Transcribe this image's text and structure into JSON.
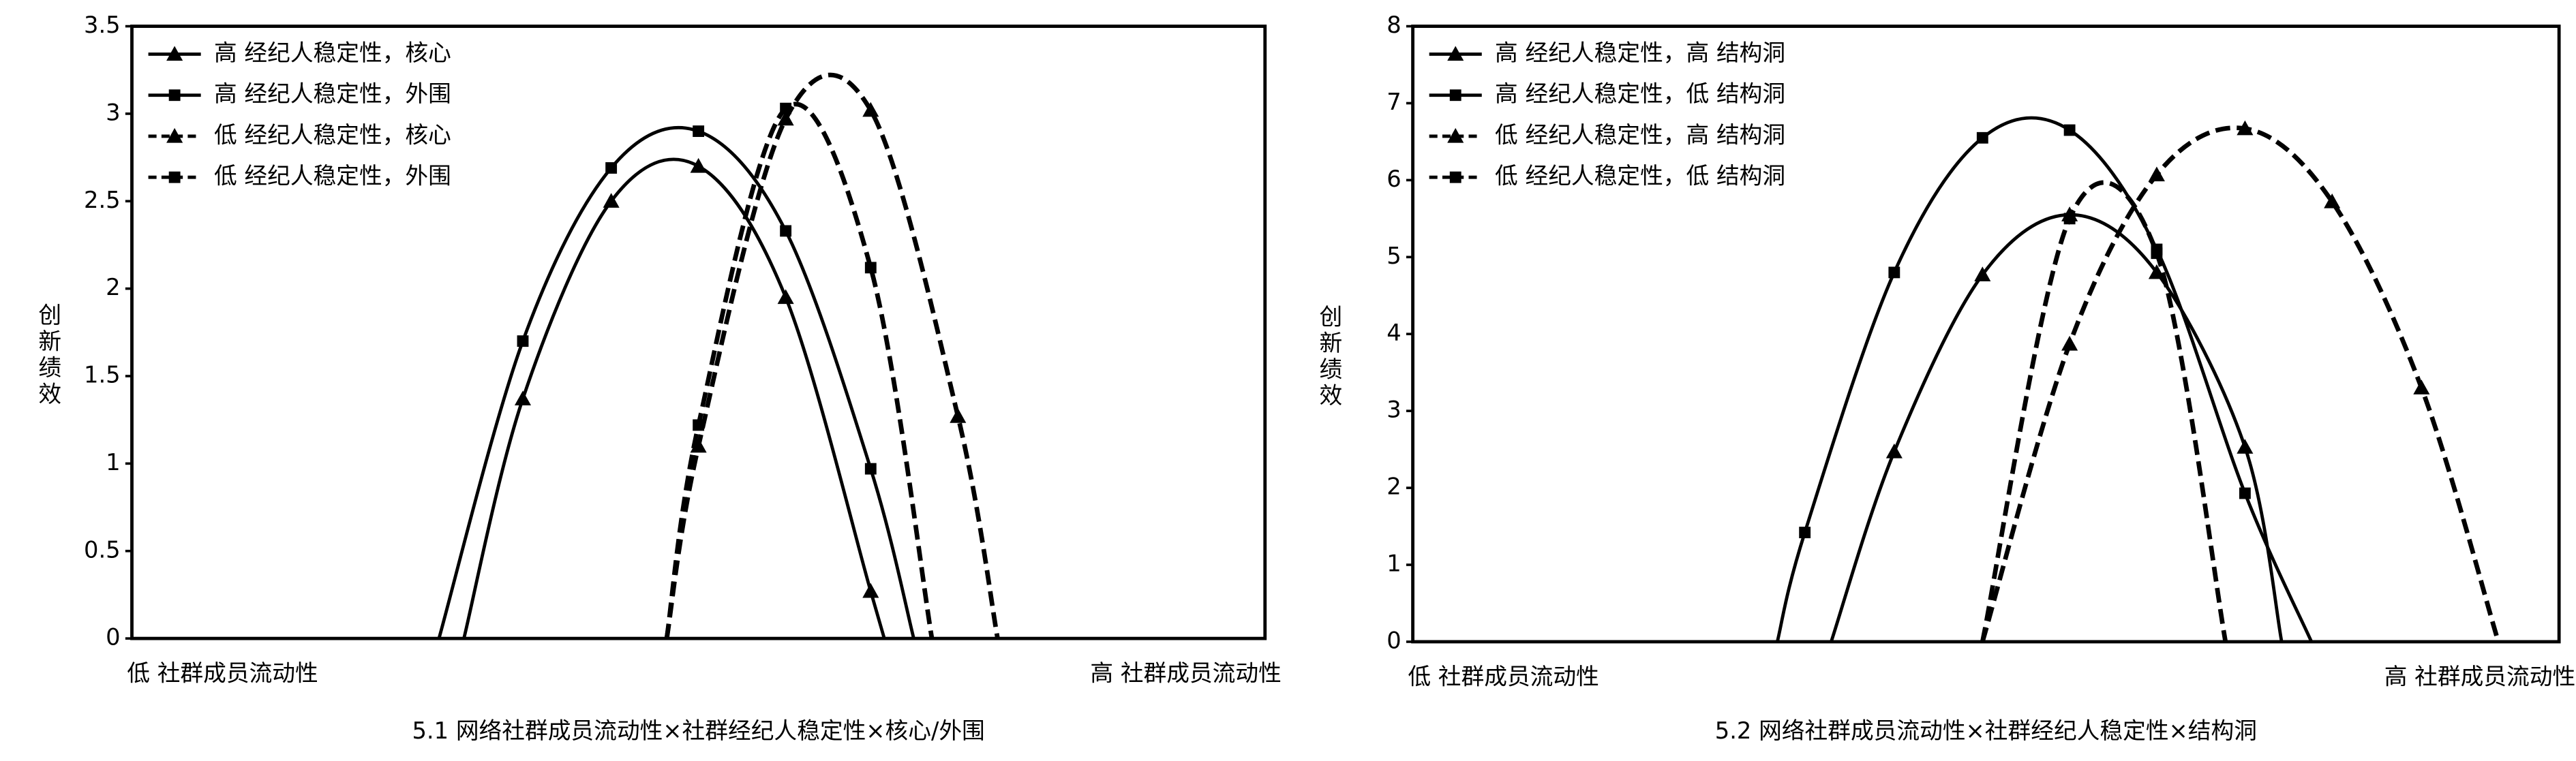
{
  "chart_data": [
    {
      "type": "line",
      "title": "5.1 网络社群成员流动性×社群经纪人稳定性×核心/外围",
      "y_label": "创新绩效",
      "annotations": [
        "低 社群成员流动性",
        "高 社群成员流动性"
      ],
      "xlim": [
        0,
        10
      ],
      "ylim": [
        0,
        3.5
      ],
      "yticks": [
        0,
        0.5,
        1,
        1.5,
        2,
        2.5,
        3,
        3.5
      ],
      "legend": "upper left",
      "series": [
        {
          "name": "高 经纪人稳定性，核心",
          "color": "#000000",
          "line_style": "solid",
          "marker": "triangle",
          "x": [
            2.93,
            3.45,
            4.23,
            5.0,
            5.77,
            6.52,
            6.64
          ],
          "values": [
            0,
            1.37,
            2.5,
            2.7,
            1.95,
            0.27,
            0
          ]
        },
        {
          "name": "高 经纪人稳定性，外围",
          "color": "#000000",
          "line_style": "solid",
          "marker": "square",
          "x": [
            2.71,
            3.45,
            4.23,
            5.0,
            5.77,
            6.52,
            6.9
          ],
          "values": [
            0,
            1.7,
            2.69,
            2.9,
            2.33,
            0.97,
            0
          ]
        },
        {
          "name": "低 经纪人稳定性，核心",
          "color": "#000000",
          "line_style": "dashed",
          "marker": "triangle",
          "x": [
            4.72,
            5.0,
            5.77,
            6.52,
            7.29,
            7.64
          ],
          "values": [
            0,
            1.1,
            2.97,
            3.02,
            1.27,
            0
          ]
        },
        {
          "name": "低 经纪人稳定性，外围",
          "color": "#000000",
          "line_style": "dashed",
          "marker": "square",
          "x": [
            4.72,
            5.0,
            5.77,
            6.52,
            7.06
          ],
          "values": [
            0,
            1.22,
            3.03,
            2.12,
            0
          ]
        }
      ]
    },
    {
      "type": "line",
      "title": "5.2 网络社群成员流动性×社群经纪人稳定性×结构洞",
      "y_label": "创新绩效",
      "annotations": [
        "低 社群成员流动性",
        "高 社群成员流动性"
      ],
      "xlim": [
        0,
        10
      ],
      "ylim": [
        0,
        8
      ],
      "yticks": [
        0,
        1,
        2,
        3,
        4,
        5,
        6,
        7,
        8
      ],
      "legend": "upper left",
      "series": [
        {
          "name": "高 经纪人稳定性，高 结构洞",
          "color": "#000000",
          "line_style": "solid",
          "marker": "triangle",
          "x": [
            3.65,
            4.2,
            4.97,
            5.73,
            6.49,
            7.26,
            7.58
          ],
          "values": [
            0,
            2.47,
            4.77,
            5.55,
            4.8,
            2.53,
            0
          ]
        },
        {
          "name": "高 经纪人稳定性，低 结构洞",
          "color": "#000000",
          "line_style": "solid",
          "marker": "square",
          "x": [
            3.18,
            3.42,
            4.2,
            4.97,
            5.73,
            6.49,
            7.26,
            7.84
          ],
          "values": [
            0,
            1.42,
            4.8,
            6.55,
            6.65,
            5.1,
            1.93,
            0
          ]
        },
        {
          "name": "低 经纪人稳定性，高 结构洞",
          "color": "#000000",
          "line_style": "dashed",
          "marker": "triangle",
          "x": [
            4.97,
            5.73,
            6.49,
            7.26,
            8.02,
            8.8,
            9.47
          ],
          "values": [
            0,
            3.87,
            6.07,
            6.67,
            5.72,
            3.3,
            0
          ]
        },
        {
          "name": "低 经纪人稳定性，低 结构洞",
          "color": "#000000",
          "line_style": "dashed",
          "marker": "square",
          "x": [
            4.97,
            5.73,
            6.49,
            7.09
          ],
          "values": [
            0,
            5.5,
            5.05,
            0
          ]
        }
      ]
    }
  ]
}
